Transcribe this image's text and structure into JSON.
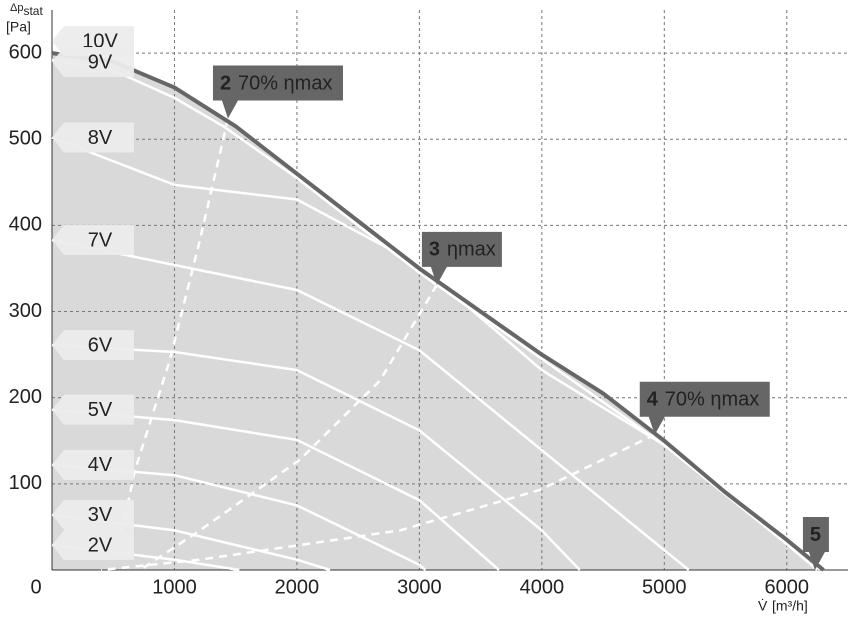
{
  "chart_data": {
    "type": "line",
    "y_label": {
      "symbol": "Δp",
      "subscript": "stat",
      "unit": "[Pa]"
    },
    "x_label": {
      "symbol": "V̇",
      "unit": "[m³/h]"
    },
    "xlim": [
      0,
      6500
    ],
    "ylim": [
      0,
      650
    ],
    "xticks": [
      0,
      1000,
      2000,
      3000,
      4000,
      5000,
      6000
    ],
    "yticks": [
      100,
      200,
      300,
      400,
      500,
      600
    ],
    "grid": true,
    "series": [
      {
        "name": "10V",
        "color": "#666666",
        "x": [
          0,
          500,
          1000,
          1500,
          2000,
          3000,
          4000,
          4500,
          5000,
          5500,
          6000,
          6300
        ],
        "values": [
          600,
          590,
          560,
          515,
          460,
          350,
          250,
          205,
          150,
          90,
          35,
          0
        ]
      },
      {
        "name": "9V",
        "color": "#ffffff",
        "x": [
          0,
          500,
          1000,
          1400,
          2000,
          3000,
          4000,
          5000,
          6000,
          6250
        ],
        "values": [
          592,
          580,
          548,
          515,
          455,
          345,
          245,
          145,
          30,
          0
        ]
      },
      {
        "name": "8V",
        "color": "#ffffff",
        "x": [
          0,
          1000,
          2000,
          3000,
          4000,
          5000,
          6000,
          6270
        ],
        "values": [
          502,
          447,
          430,
          354,
          232,
          145,
          46,
          0
        ]
      },
      {
        "name": "7V",
        "color": "#ffffff",
        "x": [
          0,
          1000,
          2000,
          3000,
          4000,
          5000,
          5200
        ],
        "values": [
          383,
          354,
          325,
          255,
          139,
          23,
          0
        ]
      },
      {
        "name": "6V",
        "color": "#ffffff",
        "x": [
          0,
          1000,
          2000,
          3000,
          4000,
          4310
        ],
        "values": [
          261,
          253,
          232,
          162,
          46,
          0
        ]
      },
      {
        "name": "5V",
        "color": "#ffffff",
        "x": [
          0,
          1000,
          2000,
          3000,
          3650
        ],
        "values": [
          186,
          174,
          151,
          81,
          0
        ]
      },
      {
        "name": "4V",
        "color": "#ffffff",
        "x": [
          0,
          1000,
          2000,
          3000,
          3050
        ],
        "values": [
          122,
          110,
          75,
          6,
          0
        ]
      },
      {
        "name": "3V",
        "color": "#ffffff",
        "x": [
          0,
          1000,
          2000,
          2270
        ],
        "values": [
          64,
          46,
          12,
          0
        ]
      },
      {
        "name": "2V",
        "color": "#ffffff",
        "x": [
          0,
          1000,
          1530
        ],
        "values": [
          29,
          12,
          0
        ]
      }
    ],
    "efficiency_lines": [
      {
        "color": "#ffffff",
        "x": [
          1437,
          1208,
          963,
          678,
          555
        ],
        "values": [
          524,
          383,
          244,
          116,
          35
        ]
      },
      {
        "color": "#ffffff",
        "x": [
          3143,
          2678,
          2024,
          1208,
          720
        ],
        "values": [
          331,
          220,
          128,
          46,
          0
        ]
      },
      {
        "color": "#ffffff",
        "x": [
          4922,
          3984,
          2841,
          1208,
          400
        ],
        "values": [
          157,
          93,
          46,
          12,
          0
        ]
      }
    ],
    "annotations": [
      {
        "number": "2",
        "text": "70% ηmax",
        "x": 1437,
        "y": 524
      },
      {
        "number": "3",
        "text": "ηmax",
        "x": 3143,
        "y": 331
      },
      {
        "number": "4",
        "text": "70% ηmax",
        "x": 4922,
        "y": 157
      },
      {
        "number": "5",
        "text": "",
        "x": 6230,
        "y": 0
      }
    ]
  }
}
